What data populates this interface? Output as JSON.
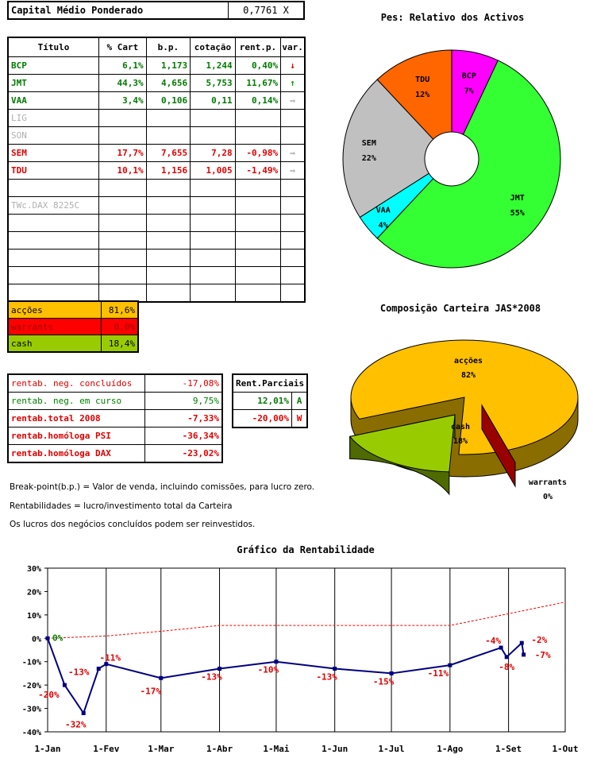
{
  "capital": {
    "label": "Capital Médio Ponderado",
    "value": "0,7761 X"
  },
  "titles_table": {
    "headers": [
      "Título",
      "% Cart",
      "b.p.",
      "cotação",
      "rent.p.",
      "var."
    ],
    "rows": [
      {
        "name": "BCP",
        "cart": "6,1%",
        "bp": "1,173",
        "cot": "1,244",
        "rent": "0,40%",
        "var": "down",
        "style": "green"
      },
      {
        "name": "JMT",
        "cart": "44,3%",
        "bp": "4,656",
        "cot": "5,753",
        "rent": "11,67%",
        "var": "up",
        "style": "green"
      },
      {
        "name": "VAA",
        "cart": "3,4%",
        "bp": "0,106",
        "cot": "0,11",
        "rent": "0,14%",
        "var": "flat",
        "style": "green"
      },
      {
        "name": "LIG",
        "cart": "",
        "bp": "",
        "cot": "",
        "rent": "",
        "var": "",
        "style": "grey"
      },
      {
        "name": "SON",
        "cart": "",
        "bp": "",
        "cot": "",
        "rent": "",
        "var": "",
        "style": "grey"
      },
      {
        "name": "SEM",
        "cart": "17,7%",
        "bp": "7,655",
        "cot": "7,28",
        "rent": "-0,98%",
        "var": "flat",
        "style": "red"
      },
      {
        "name": "TDU",
        "cart": "10,1%",
        "bp": "1,156",
        "cot": "1,005",
        "rent": "-1,49%",
        "var": "flat",
        "style": "red"
      },
      {
        "name": "",
        "cart": "",
        "bp": "",
        "cot": "",
        "rent": "",
        "var": "",
        "style": "grey"
      },
      {
        "name": "TWc.DAX 8225C",
        "cart": "",
        "bp": "",
        "cot": "",
        "rent": "",
        "var": "",
        "style": "grey"
      },
      {
        "name": "",
        "cart": "",
        "bp": "",
        "cot": "",
        "rent": "",
        "var": "",
        "style": "grey"
      },
      {
        "name": "",
        "cart": "",
        "bp": "",
        "cot": "",
        "rent": "",
        "var": "",
        "style": "grey"
      },
      {
        "name": "",
        "cart": "",
        "bp": "",
        "cot": "",
        "rent": "",
        "var": "",
        "style": "grey"
      },
      {
        "name": "",
        "cart": "",
        "bp": "",
        "cot": "",
        "rent": "",
        "var": "",
        "style": "grey"
      },
      {
        "name": "",
        "cart": "",
        "bp": "",
        "cot": "",
        "rent": "",
        "var": "",
        "style": "grey"
      }
    ]
  },
  "allocation": [
    {
      "label": "acções",
      "value": "81,6%",
      "color": "#ffc000",
      "text": "#000000"
    },
    {
      "label": "warrants",
      "value": "0,0%",
      "color": "#ff0000",
      "text": "#a00000"
    },
    {
      "label": "cash",
      "value": "18,4%",
      "color": "#99cc00",
      "text": "#000000"
    }
  ],
  "rentabilidade": [
    {
      "label": "rentab. neg. concluídos",
      "value": "-17,08%",
      "lc": "#e00000",
      "vc": "#e00000",
      "bold": false
    },
    {
      "label": "rentab. neg. em curso",
      "value": "9,75%",
      "lc": "#008000",
      "vc": "#008000",
      "bold": false
    },
    {
      "label": "rentab.total 2008",
      "value": "-7,33%",
      "lc": "#e00000",
      "vc": "#e00000",
      "bold": true
    },
    {
      "label": "rentab.homóloga PSI",
      "value": "-36,34%",
      "lc": "#e00000",
      "vc": "#e00000",
      "bold": true
    },
    {
      "label": "rentab.homóloga DAX",
      "value": "-23,02%",
      "lc": "#e00000",
      "vc": "#e00000",
      "bold": true
    }
  ],
  "parciais": {
    "header": "Rent.Parciais",
    "rows": [
      {
        "value": "12,01%",
        "tag": "A",
        "color": "#007a00"
      },
      {
        "value": "-20,00%",
        "tag": "W",
        "color": "#e00000"
      }
    ]
  },
  "notes": [
    "Break-point(b.p.) = Valor de venda, incluindo comissões, para lucro zero.",
    "Rentabilidades = lucro/investimento total da Carteira",
    "Os lucros dos negócios concluídos podem ser reinvestidos."
  ],
  "chart_data": [
    {
      "type": "pie",
      "title": "Pes: Relativo dos Activos",
      "variant": "doughnut",
      "categories": [
        "BCP",
        "JMT",
        "VAA",
        "SEM",
        "TDU"
      ],
      "values": [
        7,
        55,
        4,
        22,
        12
      ],
      "labels": [
        "7%",
        "55%",
        "4%",
        "22%",
        "12%"
      ],
      "colors": [
        "#ff00ff",
        "#33ff33",
        "#00ffff",
        "#c0c0c0",
        "#ff6600"
      ]
    },
    {
      "type": "pie",
      "title": "Composição Carteira JAS*2008",
      "variant": "3d",
      "categories": [
        "acções",
        "cash",
        "warrants"
      ],
      "values": [
        82,
        18,
        0
      ],
      "labels": [
        "82%",
        "18%",
        "0%"
      ],
      "colors": [
        "#ffc000",
        "#99cc00",
        "#990000"
      ]
    },
    {
      "type": "line",
      "title": "Gráfico da Rentabilidade",
      "x_ticks": [
        "1-Jan",
        "1-Fev",
        "1-Mar",
        "1-Abr",
        "1-Mai",
        "1-Jun",
        "1-Jul",
        "1-Ago",
        "1-Set",
        "1-Out"
      ],
      "ylim": [
        -40,
        30
      ],
      "y_ticks": [
        "30%",
        "20%",
        "10%",
        "0%",
        "-10%",
        "-20%",
        "-30%",
        "-40%"
      ],
      "series": [
        {
          "color": "#000080",
          "style": "solid",
          "points": [
            [
              "1-Jan",
              0
            ],
            [
              "10-Jan",
              -20
            ],
            [
              "20-Jan",
              -32
            ],
            [
              "28-Jan",
              -13
            ],
            [
              "1-Fev",
              -11
            ],
            [
              "1-Mar",
              -17
            ],
            [
              "1-Abr",
              -13
            ],
            [
              "1-Mai",
              -10
            ],
            [
              "1-Jun",
              -13
            ],
            [
              "1-Jul",
              -15
            ],
            [
              "1-Ago",
              -11.5
            ],
            [
              "28-Ago",
              -4
            ],
            [
              "31-Ago",
              -8
            ],
            [
              "8-Set",
              -2
            ],
            [
              "9-Set",
              -7
            ]
          ],
          "labels": [
            "0%",
            "-20%",
            "-32%",
            "-13%",
            "-11%",
            "-17%",
            "-13%",
            "-10%",
            "-13%",
            "-15%",
            "-11%",
            "-4%",
            "-8%",
            "-2%",
            "-7%"
          ]
        },
        {
          "color": "#ff0000",
          "style": "dashed",
          "points": [
            [
              "1-Jan",
              0
            ],
            [
              "1-Fev",
              1
            ],
            [
              "1-Mar",
              3
            ],
            [
              "1-Abr",
              5.5
            ],
            [
              "1-Mai",
              5.5
            ],
            [
              "1-Jun",
              5.5
            ],
            [
              "1-Jul",
              5.5
            ],
            [
              "1-Ago",
              5.5
            ],
            [
              "1-Set",
              10.5
            ],
            [
              "1-Out",
              15.5
            ]
          ]
        }
      ]
    }
  ]
}
